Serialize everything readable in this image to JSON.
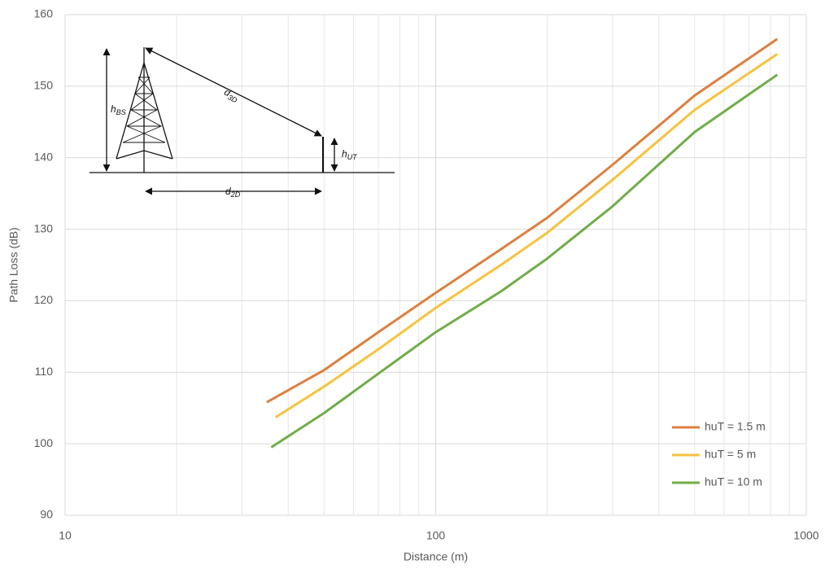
{
  "chart_data": {
    "type": "line",
    "x_label": "Distance (m)",
    "y_label": "Path Loss (dB)",
    "log_x": true,
    "grid": true,
    "legend_position": "lower right",
    "xlim": [
      10,
      1000
    ],
    "xticks": [
      10,
      100,
      1000
    ],
    "x_minor_grid": [
      20,
      30,
      40,
      50,
      60,
      70,
      80,
      90,
      200,
      300,
      400,
      500,
      600,
      700,
      800,
      900
    ],
    "ylim": [
      90,
      160
    ],
    "yticks": [
      90,
      100,
      110,
      120,
      130,
      140,
      150,
      160
    ],
    "series": [
      {
        "name": "huT = 1.5 m",
        "color": "#dd7f3f",
        "x": [
          35,
          50,
          70,
          100,
          150,
          200,
          300,
          500,
          835
        ],
        "values": [
          105.8,
          110.3,
          115.6,
          121.1,
          127.2,
          131.6,
          139.0,
          148.7,
          156.6
        ]
      },
      {
        "name": "huT = 5 m",
        "color": "#f6c23e",
        "x": [
          37,
          50,
          70,
          100,
          150,
          200,
          300,
          500,
          835
        ],
        "values": [
          103.7,
          108.0,
          113.2,
          119.0,
          125.0,
          129.5,
          136.9,
          146.7,
          154.5
        ]
      },
      {
        "name": "huT = 10 m",
        "color": "#70ad47",
        "x": [
          36,
          50,
          70,
          100,
          150,
          200,
          300,
          500,
          835
        ],
        "values": [
          99.5,
          104.3,
          109.8,
          115.6,
          121.3,
          125.9,
          133.2,
          143.6,
          151.6
        ]
      }
    ],
    "annotations": [
      {
        "text": "h",
        "subscript": "BS"
      },
      {
        "text": "d",
        "subscript": "3D"
      },
      {
        "text": "h",
        "subscript": "UT"
      },
      {
        "text": "d",
        "subscript": "2D"
      }
    ]
  }
}
